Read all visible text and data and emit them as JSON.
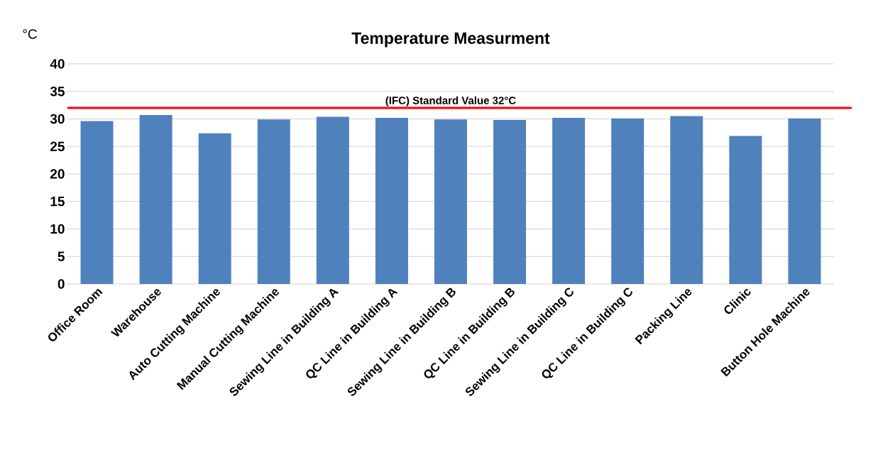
{
  "chart_data": {
    "type": "bar",
    "title": "Temperature Measurment",
    "ylabel": "°C",
    "categories": [
      "Office Room",
      "Warehouse",
      "Auto Cutting Machine",
      "Manual Cutting Machine",
      "Sewing Line in Building A",
      "QC Line in Building A",
      "Sewing Line in Building B",
      "QC Line in Building B",
      "Sewing Line in Building C",
      "QC Line in Building C",
      "Packing Line",
      "Clinic",
      "Button Hole Machine"
    ],
    "values": [
      29.6,
      30.7,
      27.4,
      29.9,
      30.4,
      30.2,
      29.9,
      29.8,
      30.2,
      30.1,
      30.5,
      26.9,
      30.1
    ],
    "color": "#4f81bd",
    "ylim": [
      0,
      40
    ],
    "yticks": [
      0,
      5,
      10,
      15,
      20,
      25,
      30,
      35,
      40
    ],
    "grid": "y",
    "ref_lines": [
      {
        "axis": "y",
        "value": 32,
        "label": "(IFC) Standard Value 32°C",
        "color": "#ff0000"
      }
    ]
  }
}
